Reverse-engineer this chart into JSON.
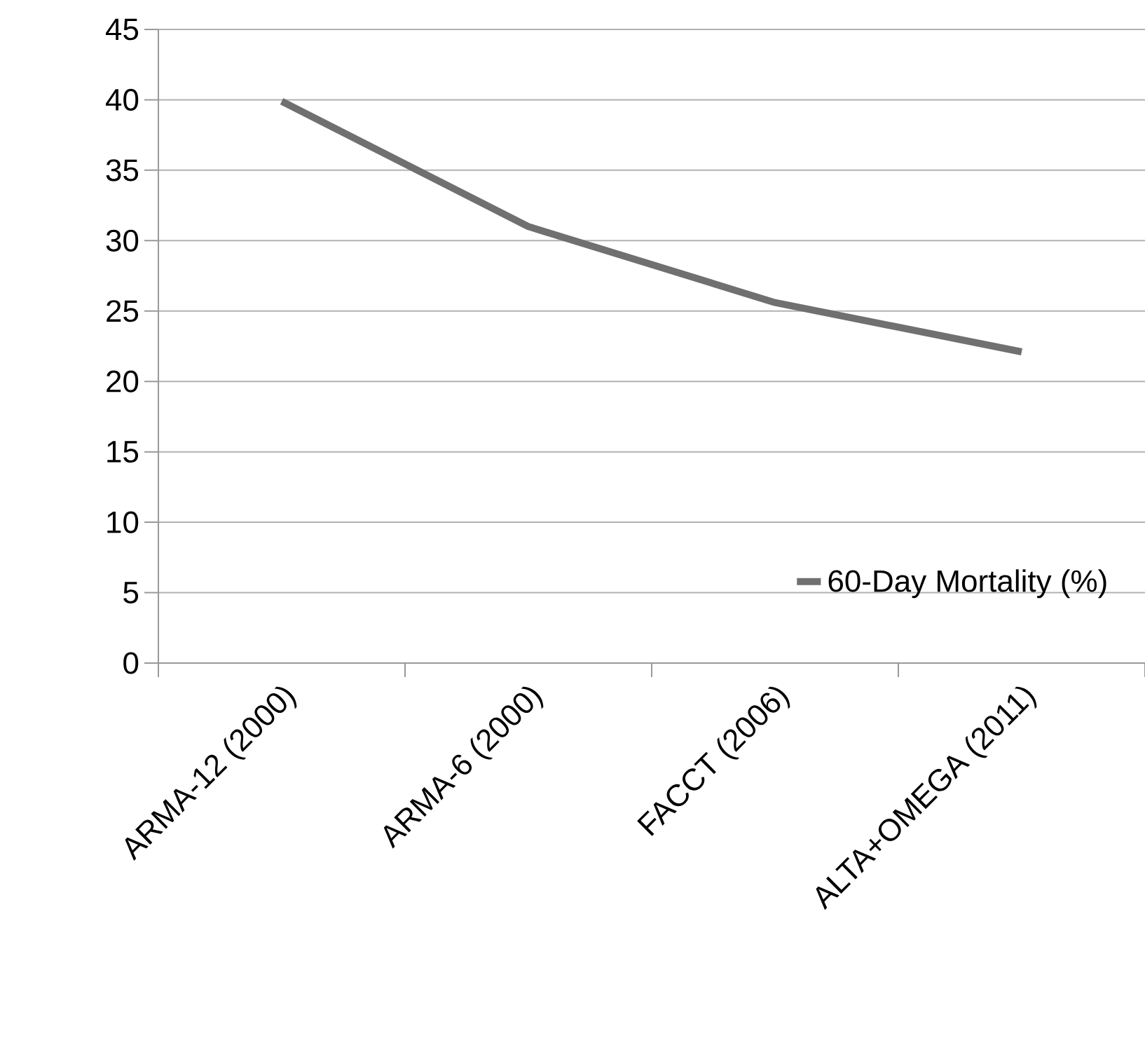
{
  "chart_data": {
    "type": "line",
    "categories": [
      "ARMA-12 (2000)",
      "ARMA-6 (2000)",
      "FACCT (2006)",
      "ALTA+OMEGA (2011)"
    ],
    "series": [
      {
        "name": "60-Day Mortality (%)",
        "color": "#707070",
        "values": [
          39.9,
          31,
          25.6,
          22.1
        ]
      }
    ],
    "ylim": [
      0,
      45
    ],
    "yticks": [
      0,
      5,
      10,
      15,
      20,
      25,
      30,
      35,
      40,
      45
    ],
    "grid": "y",
    "legend": "bottom right",
    "marker": "none",
    "line_style": "solid"
  }
}
